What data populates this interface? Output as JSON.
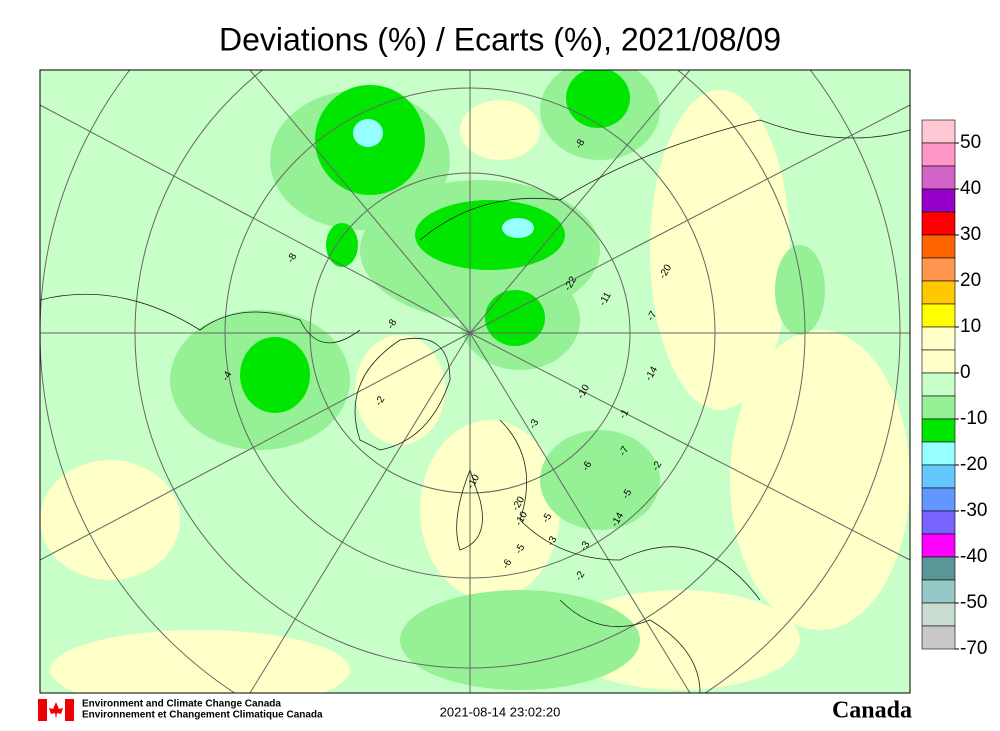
{
  "title": "Deviations (%) / Ecarts (%), 2021/08/09",
  "legend": {
    "ticks": [
      50,
      40,
      30,
      20,
      10,
      0,
      -10,
      -20,
      -30,
      -40,
      -50,
      -70
    ],
    "colors": [
      "#ffc8d2",
      "#ff96c8",
      "#d264c8",
      "#9600c8",
      "#ff0000",
      "#ff6400",
      "#ff9650",
      "#ffc800",
      "#ffff00",
      "#ffffc8",
      "#ffffc8",
      "#c8ffc8",
      "#96f096",
      "#00e600",
      "#96ffff",
      "#64c8ff",
      "#6496ff",
      "#7864ff",
      "#ff00ff",
      "#5a9696",
      "#96c8c8",
      "#c8dcd2",
      "#c8c8c8"
    ]
  },
  "stations": [
    "-8",
    "-4",
    "-2",
    "-8",
    "-11",
    "-22",
    "-20",
    "-7",
    "-14",
    "-10",
    "-1",
    "-7",
    "-6",
    "-5",
    "-2",
    "-10",
    "-20",
    "-10",
    "-5",
    "-5",
    "-3",
    "-6",
    "-3",
    "-2",
    "-14",
    "-8",
    "-3"
  ],
  "footer": {
    "agency_en": "Environment and Climate Change Canada",
    "agency_fr": "Environnement et Changement Climatique Canada",
    "timestamp": "2021-08-14 23:02:20",
    "wordmark": "Canada"
  }
}
